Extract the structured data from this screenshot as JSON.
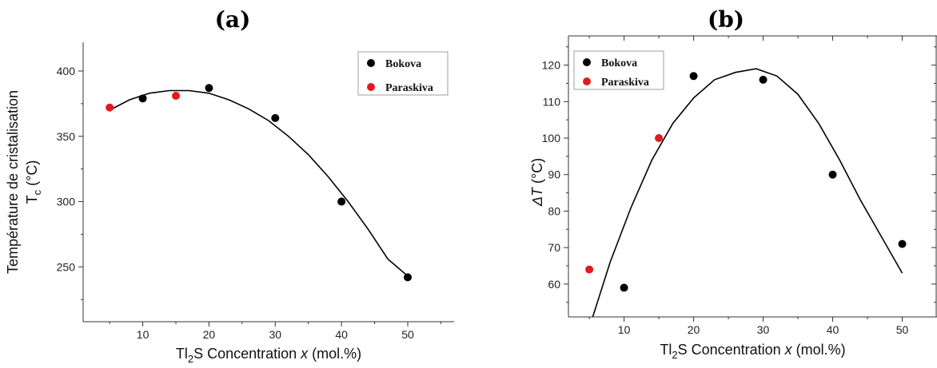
{
  "chart_data": [
    {
      "type": "scatter",
      "panel_label": "(a)",
      "xlabel": {
        "prefix": "Tl",
        "sub": "2",
        "mid": "S Concentration ",
        "italic": "x",
        "suffix": " (mol.%)"
      },
      "ylabel": {
        "line1": "Température de cristalisation",
        "main": "T",
        "sub": "c",
        "unit": " (°C)"
      },
      "xlim": [
        1,
        57
      ],
      "ylim": [
        208,
        422
      ],
      "xticks": [
        10,
        20,
        30,
        40,
        50
      ],
      "yticks": [
        250,
        300,
        350,
        400
      ],
      "mirror_axes": false,
      "legend_position": "top-right",
      "series": [
        {
          "name": "Bokova",
          "color": "#000000",
          "x": [
            10,
            20,
            30,
            40,
            50
          ],
          "y": [
            379,
            387,
            364,
            300,
            242
          ]
        },
        {
          "name": "Paraskiva",
          "color": "#e31a1c",
          "x": [
            5,
            15
          ],
          "y": [
            372,
            381
          ]
        }
      ],
      "fit_curve": {
        "x": [
          5,
          8,
          11,
          14,
          17,
          20,
          23,
          26,
          29,
          32,
          35,
          38,
          41,
          44,
          47,
          50
        ],
        "y": [
          370,
          378,
          383,
          385,
          385,
          383,
          378,
          371,
          362,
          350,
          336,
          319,
          300,
          279,
          256,
          243
        ]
      }
    },
    {
      "type": "scatter",
      "panel_label": "(b)",
      "xlabel": {
        "prefix": "Tl",
        "sub": "2",
        "mid": "S Concentration ",
        "italic": "x",
        "suffix": " (mol.%)"
      },
      "ylabel": {
        "line1": "",
        "main": "ΔT",
        "sub": "",
        "unit": " (°C)"
      },
      "xlim": [
        2,
        55
      ],
      "ylim": [
        51,
        128
      ],
      "xticks": [
        10,
        20,
        30,
        40,
        50
      ],
      "yticks": [
        60,
        70,
        80,
        90,
        100,
        110,
        120
      ],
      "mirror_axes": true,
      "legend_position": "top-left",
      "series": [
        {
          "name": "Bokova",
          "color": "#000000",
          "x": [
            10,
            20,
            30,
            40,
            50
          ],
          "y": [
            59,
            117,
            116,
            90,
            71
          ]
        },
        {
          "name": "Paraskiva",
          "color": "#e31a1c",
          "x": [
            5,
            15
          ],
          "y": [
            64,
            100
          ]
        }
      ],
      "fit_curve": {
        "x": [
          5.5,
          8,
          11,
          14,
          17,
          20,
          23,
          26,
          29,
          32,
          35,
          38,
          41,
          44,
          47,
          50
        ],
        "y": [
          51,
          66,
          81,
          94,
          104,
          111,
          116,
          118,
          119,
          117,
          112,
          104,
          94,
          83,
          73,
          63
        ]
      }
    }
  ]
}
